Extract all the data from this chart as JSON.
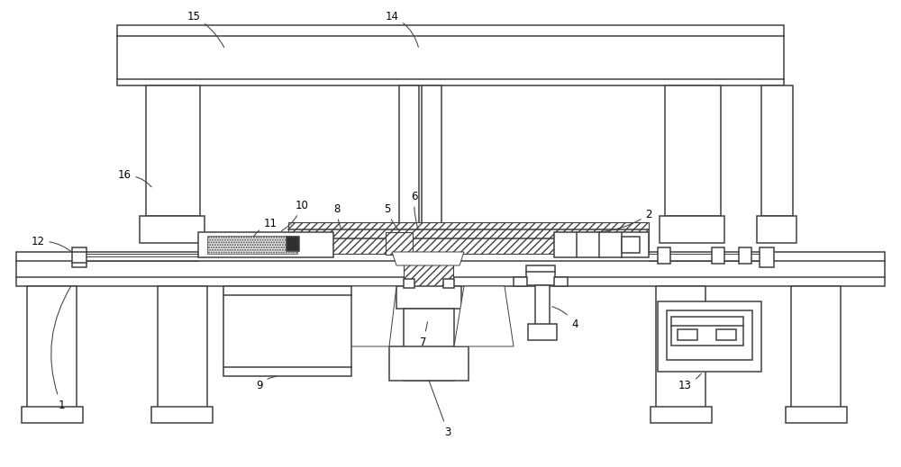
{
  "figure_width": 10.0,
  "figure_height": 5.19,
  "dpi": 100,
  "bg_color": "#ffffff",
  "lc": "#404040",
  "lw": 1.1,
  "lw_thin": 0.7,
  "label_fontsize": 8.5
}
